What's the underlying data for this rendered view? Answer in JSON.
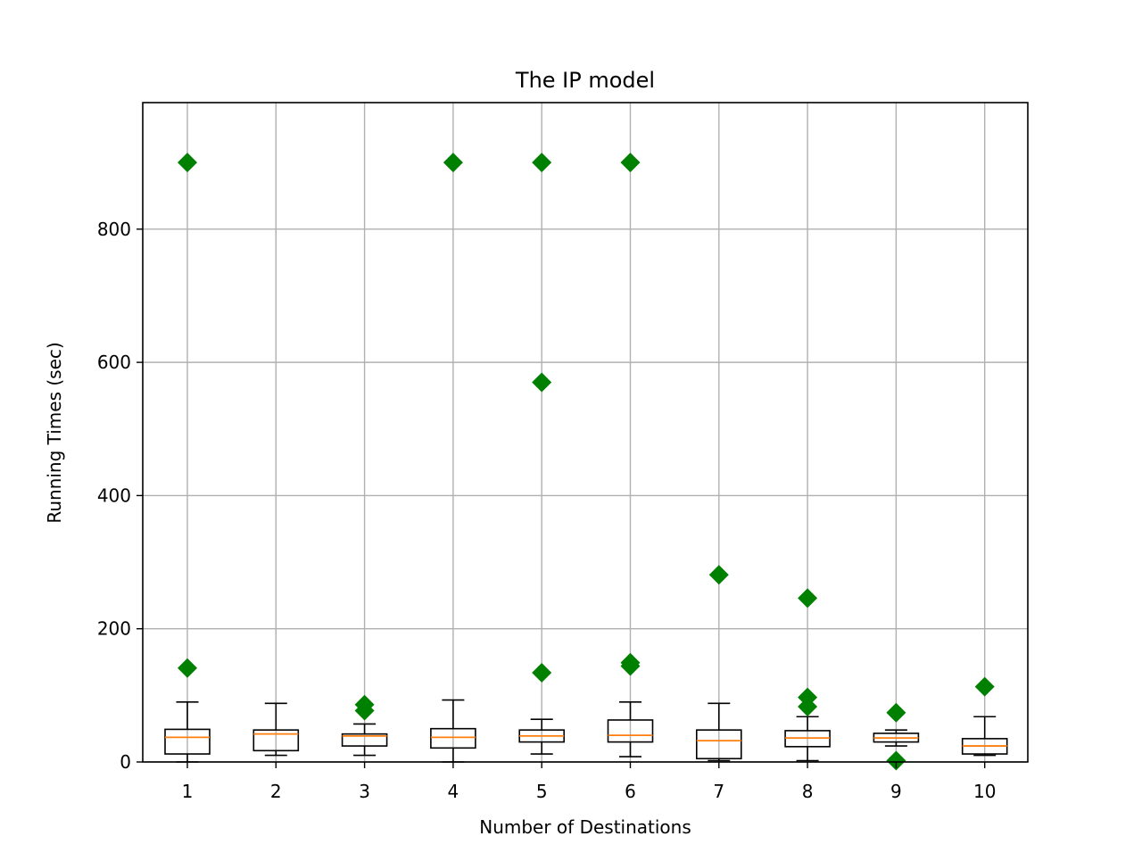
{
  "chart_data": {
    "type": "box",
    "title": "The IP model",
    "xlabel": "Number of Destinations",
    "ylabel": "Running Times (sec)",
    "categories": [
      "1",
      "2",
      "3",
      "4",
      "5",
      "6",
      "7",
      "8",
      "9",
      "10"
    ],
    "ylim": [
      0,
      990
    ],
    "yticks": [
      0,
      200,
      400,
      600,
      800
    ],
    "grid": true,
    "legend": "none",
    "colors": {
      "box": "#000000",
      "median": "#ff7f0e",
      "outlier": "#008000",
      "grid": "#b0b0b0"
    },
    "boxes": [
      {
        "category": "1",
        "whisker_low": 0,
        "q1": 12,
        "median": 37,
        "q3": 49,
        "whisker_high": 90,
        "outliers": [
          900,
          141
        ]
      },
      {
        "category": "2",
        "whisker_low": 10,
        "q1": 17,
        "median": 42,
        "q3": 48,
        "whisker_high": 88,
        "outliers": []
      },
      {
        "category": "3",
        "whisker_low": 10,
        "q1": 24,
        "median": 39,
        "q3": 42,
        "whisker_high": 57,
        "outliers": [
          86,
          77
        ]
      },
      {
        "category": "4",
        "whisker_low": 0,
        "q1": 21,
        "median": 37,
        "q3": 50,
        "whisker_high": 93,
        "outliers": [
          900
        ]
      },
      {
        "category": "5",
        "whisker_low": 12,
        "q1": 30,
        "median": 39,
        "q3": 48,
        "whisker_high": 64,
        "outliers": [
          900,
          570,
          134
        ]
      },
      {
        "category": "6",
        "whisker_low": 8,
        "q1": 30,
        "median": 40,
        "q3": 63,
        "whisker_high": 90,
        "outliers": [
          900,
          149,
          144
        ]
      },
      {
        "category": "7",
        "whisker_low": 2,
        "q1": 5,
        "median": 32,
        "q3": 48,
        "whisker_high": 88,
        "outliers": [
          281
        ]
      },
      {
        "category": "8",
        "whisker_low": 2,
        "q1": 23,
        "median": 36,
        "q3": 47,
        "whisker_high": 68,
        "outliers": [
          246,
          97,
          83
        ]
      },
      {
        "category": "9",
        "whisker_low": 24,
        "q1": 30,
        "median": 36,
        "q3": 43,
        "whisker_high": 48,
        "outliers": [
          74,
          2
        ]
      },
      {
        "category": "10",
        "whisker_low": 10,
        "q1": 12,
        "median": 24,
        "q3": 35,
        "whisker_high": 68,
        "outliers": [
          113
        ]
      }
    ]
  }
}
